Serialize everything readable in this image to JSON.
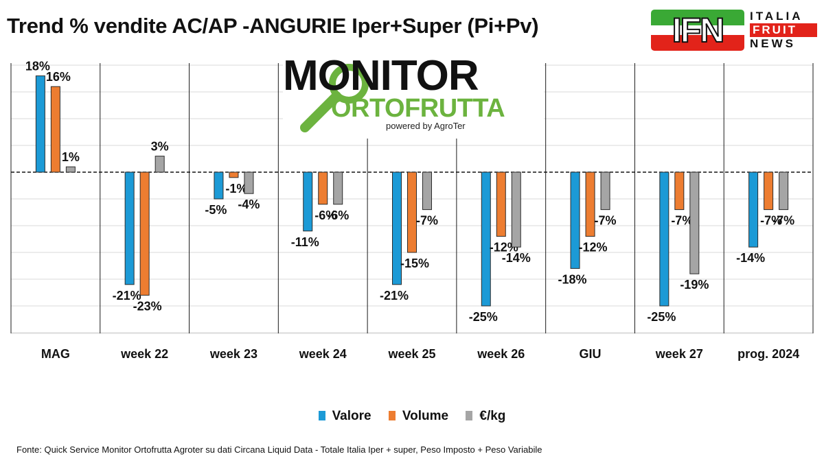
{
  "header": {
    "title": "Trend % vendite AC/AP -ANGURIE  Iper+Super (Pi+Pv)"
  },
  "ifn_logo": {
    "letters": "IFN",
    "words": [
      "ITALIA",
      "FRUIT",
      "NEWS"
    ]
  },
  "monitor_logo": {
    "main": "MONITOR",
    "sub": "ORTOFRUTTA",
    "powered": "powered by AgroTer"
  },
  "source_note": "Fonte: Quick Service Monitor Ortofrutta Agroter su dati Circana Liquid Data - Totale Italia Iper + super, Peso Imposto + Peso Variabile",
  "chart_data": {
    "type": "bar",
    "categories": [
      "MAG",
      "week 22",
      "week 23",
      "week 24",
      "week 25",
      "week 26",
      "GIU",
      "week 27",
      "prog. 2024"
    ],
    "series": [
      {
        "name": "Valore",
        "color": "#1c9ad6",
        "values": [
          18,
          -21,
          -5,
          -11,
          -21,
          -25,
          -18,
          -25,
          -14
        ],
        "labels": [
          "18%",
          "-21%",
          "-5%",
          "-11%",
          "-21%",
          "-25%",
          "-18%",
          "-25%",
          "-14%"
        ]
      },
      {
        "name": "Volume",
        "color": "#ed7d31",
        "values": [
          16,
          -23,
          -1,
          -6,
          -15,
          -12,
          -12,
          -7,
          -7
        ],
        "labels": [
          "16%",
          "-23%",
          "-1%",
          "-6%",
          "-15%",
          "-12%",
          "-12%",
          "-7%",
          "-7%"
        ]
      },
      {
        "name": "€/kg",
        "color": "#a5a5a5",
        "values": [
          1,
          3,
          -4,
          -6,
          -7,
          -14,
          -7,
          -19,
          -7
        ],
        "labels": [
          "1%",
          "3%",
          "-4%",
          "-6%",
          "-7%",
          "-14%",
          "-7%",
          "-19%",
          "-7%"
        ]
      }
    ],
    "ylim": [
      -30,
      20
    ],
    "grid": true,
    "legend": "bottom-center",
    "title": "Trend % vendite AC/AP -ANGURIE  Iper+Super (Pi+Pv)",
    "xlabel": "",
    "ylabel": ""
  }
}
